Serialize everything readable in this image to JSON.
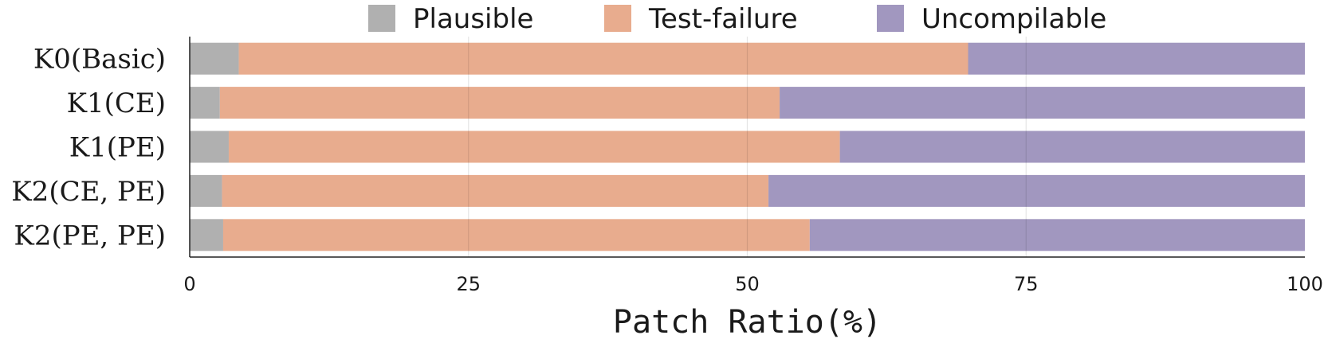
{
  "chart_data": {
    "type": "bar",
    "orientation": "horizontal",
    "stacked": true,
    "categories": [
      "K0(Basic)",
      "K1(CE)",
      "K1(PE)",
      "K2(CE, PE)",
      "K2(PE, PE)"
    ],
    "series": [
      {
        "name": "Plausible",
        "color": "#b0b0b0",
        "values": [
          4.4,
          2.7,
          3.5,
          2.9,
          3.0
        ]
      },
      {
        "name": "Test-failure",
        "color": "#e8ac8e",
        "values": [
          65.4,
          50.2,
          54.8,
          49.0,
          52.6
        ]
      },
      {
        "name": "Uncompilable",
        "color": "#a197bf",
        "values": [
          30.2,
          47.1,
          41.7,
          48.1,
          44.4
        ]
      }
    ],
    "xlabel": "Patch Ratio(%)",
    "ylabel": "",
    "xlim": [
      0,
      100
    ],
    "xticks": [
      "0",
      "25",
      "50",
      "75",
      "100"
    ],
    "grid": "vertical",
    "legend_position": "top"
  }
}
